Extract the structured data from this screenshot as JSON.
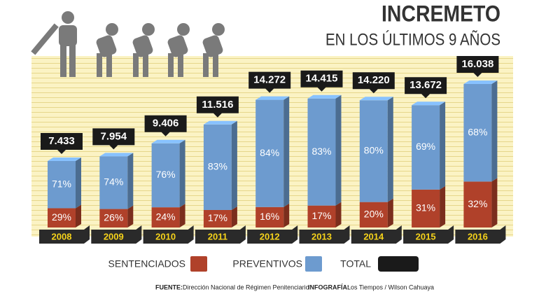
{
  "chart_data": {
    "type": "bar",
    "stacked": true,
    "title": "INCREMETO",
    "subtitle": "EN LOS ÚLTIMOS 9 AÑOS",
    "categories": [
      "2008",
      "2009",
      "2010",
      "2011",
      "2012",
      "2013",
      "2014",
      "2015",
      "2016"
    ],
    "series": [
      {
        "name": "SENTENCIADOS",
        "color": "#b0412a",
        "values": [
          29,
          26,
          24,
          17,
          16,
          17,
          20,
          31,
          32
        ],
        "value_labels": [
          "29%",
          "26%",
          "24%",
          "17%",
          "16%",
          "17%",
          "20%",
          "31%",
          "32%"
        ]
      },
      {
        "name": "PREVENTIVOS",
        "color": "#6d9bcf",
        "values": [
          71,
          74,
          76,
          83,
          84,
          83,
          80,
          69,
          68
        ],
        "value_labels": [
          "71%",
          "74%",
          "76%",
          "83%",
          "84%",
          "83%",
          "80%",
          "69%",
          "68%"
        ]
      },
      {
        "name": "TOTAL",
        "color": "#1a1a1a",
        "values": [
          7433,
          7954,
          9406,
          11516,
          14272,
          14415,
          14220,
          13672,
          16038
        ],
        "value_labels": [
          "7.433",
          "7.954",
          "9.406",
          "11.516",
          "14.272",
          "14.415",
          "14.220",
          "13.672",
          "16.038"
        ]
      }
    ],
    "source_label": "FUENTE:",
    "source": "Dirección Nacional de Régimen Penitenciario",
    "credit_label": "INFOGRAFÍA:",
    "credit": "Los Tiempos / Wilson Cahuaya"
  }
}
